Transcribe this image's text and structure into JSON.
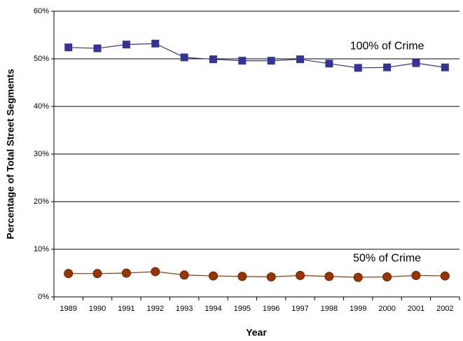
{
  "chart_data": {
    "type": "line",
    "x_label": "Year",
    "y_label": "Percentage of Total Street Segments",
    "categories": [
      "1989",
      "1990",
      "1991",
      "1992",
      "1993",
      "1994",
      "1995",
      "1996",
      "1997",
      "1998",
      "1999",
      "2000",
      "2001",
      "2002"
    ],
    "series": [
      {
        "name": "100% of Crime",
        "color": "#333399",
        "marker": "square",
        "values": [
          52.4,
          52.2,
          53.0,
          53.2,
          50.3,
          49.9,
          49.6,
          49.6,
          49.9,
          49.0,
          48.1,
          48.2,
          49.1,
          48.2
        ]
      },
      {
        "name": "50% of Crime",
        "color": "#993300",
        "marker": "circle",
        "values": [
          4.9,
          4.9,
          5.0,
          5.3,
          4.6,
          4.4,
          4.3,
          4.2,
          4.5,
          4.3,
          4.1,
          4.2,
          4.5,
          4.4
        ]
      }
    ],
    "ylim": [
      0,
      60
    ],
    "yticks": [
      {
        "value": 0,
        "label": "0%"
      },
      {
        "value": 10,
        "label": "10%"
      },
      {
        "value": 20,
        "label": "20%"
      },
      {
        "value": 30,
        "label": "30%"
      },
      {
        "value": 40,
        "label": "40%"
      },
      {
        "value": 50,
        "label": "50%"
      },
      {
        "value": 60,
        "label": "60%"
      }
    ],
    "grid": true
  }
}
